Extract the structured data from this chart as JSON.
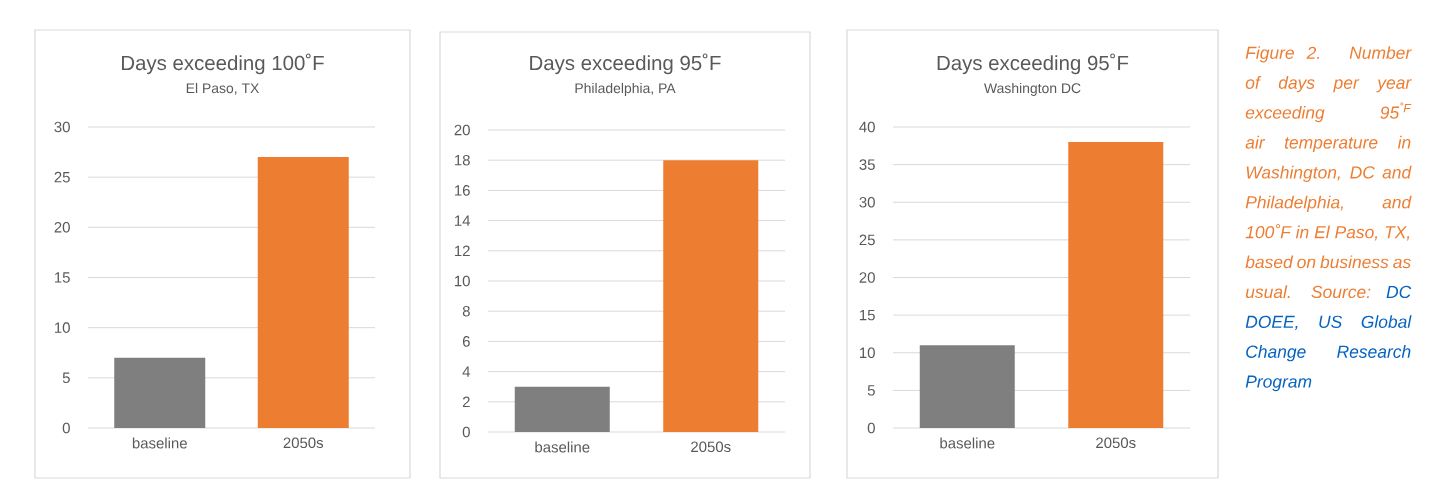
{
  "chart_data": [
    {
      "type": "bar",
      "title": "Days exceeding 100˚F",
      "subtitle": "El Paso, TX",
      "categories": [
        "baseline",
        "2050s"
      ],
      "values": [
        7,
        27
      ],
      "colors": [
        "#7f7f7f",
        "#ed7d31"
      ],
      "ylim": [
        0,
        30
      ],
      "yticks": [
        0,
        5,
        10,
        15,
        20,
        25,
        30
      ],
      "grid": "y"
    },
    {
      "type": "bar",
      "title": "Days exceeding 95˚F",
      "subtitle": "Philadelphia, PA",
      "categories": [
        "baseline",
        "2050s"
      ],
      "values": [
        3,
        18
      ],
      "colors": [
        "#7f7f7f",
        "#ed7d31"
      ],
      "ylim": [
        0,
        20
      ],
      "yticks": [
        0,
        2,
        4,
        6,
        8,
        10,
        12,
        14,
        16,
        18,
        20
      ],
      "grid": "y"
    },
    {
      "type": "bar",
      "title": "Days exceeding 95˚F",
      "subtitle": "Washington DC",
      "categories": [
        "baseline",
        "2050s"
      ],
      "values": [
        11,
        38
      ],
      "colors": [
        "#7f7f7f",
        "#ed7d31"
      ],
      "ylim": [
        0,
        40
      ],
      "yticks": [
        0,
        5,
        10,
        15,
        20,
        25,
        30,
        35,
        40
      ],
      "grid": "y"
    },
    {
      "type": "other",
      "annotations": [
        "Figure 2. Number of days per year exceeding 95$^{˚F}$ air temperature in Washington, DC and Philadelphia, and 100˚F in El Paso, TX, based on business as usual. Source:",
        "DC DOEE, US Global Change Research Program"
      ]
    }
  ]
}
